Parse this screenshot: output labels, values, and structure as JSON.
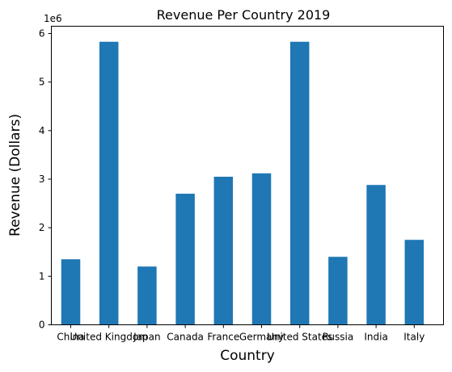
{
  "chart_data": {
    "type": "bar",
    "title": "Revenue Per Country 2019",
    "xlabel": "Country",
    "ylabel": "Revenue (Dollars)",
    "y_offset_label": "1e6",
    "y_unit_multiplier": 1000000,
    "ylim": [
      0,
      6150000
    ],
    "yticks": [
      0,
      1000000,
      2000000,
      3000000,
      4000000,
      5000000,
      6000000
    ],
    "ytick_labels": [
      "0",
      "1",
      "2",
      "3",
      "4",
      "5",
      "6"
    ],
    "categories": [
      "China",
      "United Kingdom",
      "Japan",
      "Canada",
      "France",
      "Germany",
      "United States",
      "Russia",
      "India",
      "Italy"
    ],
    "values": [
      1350000,
      5830000,
      1200000,
      2700000,
      3050000,
      3120000,
      5830000,
      1400000,
      2880000,
      1750000
    ],
    "bar_color": "#1f77b4",
    "grid": false,
    "legend": "none"
  }
}
